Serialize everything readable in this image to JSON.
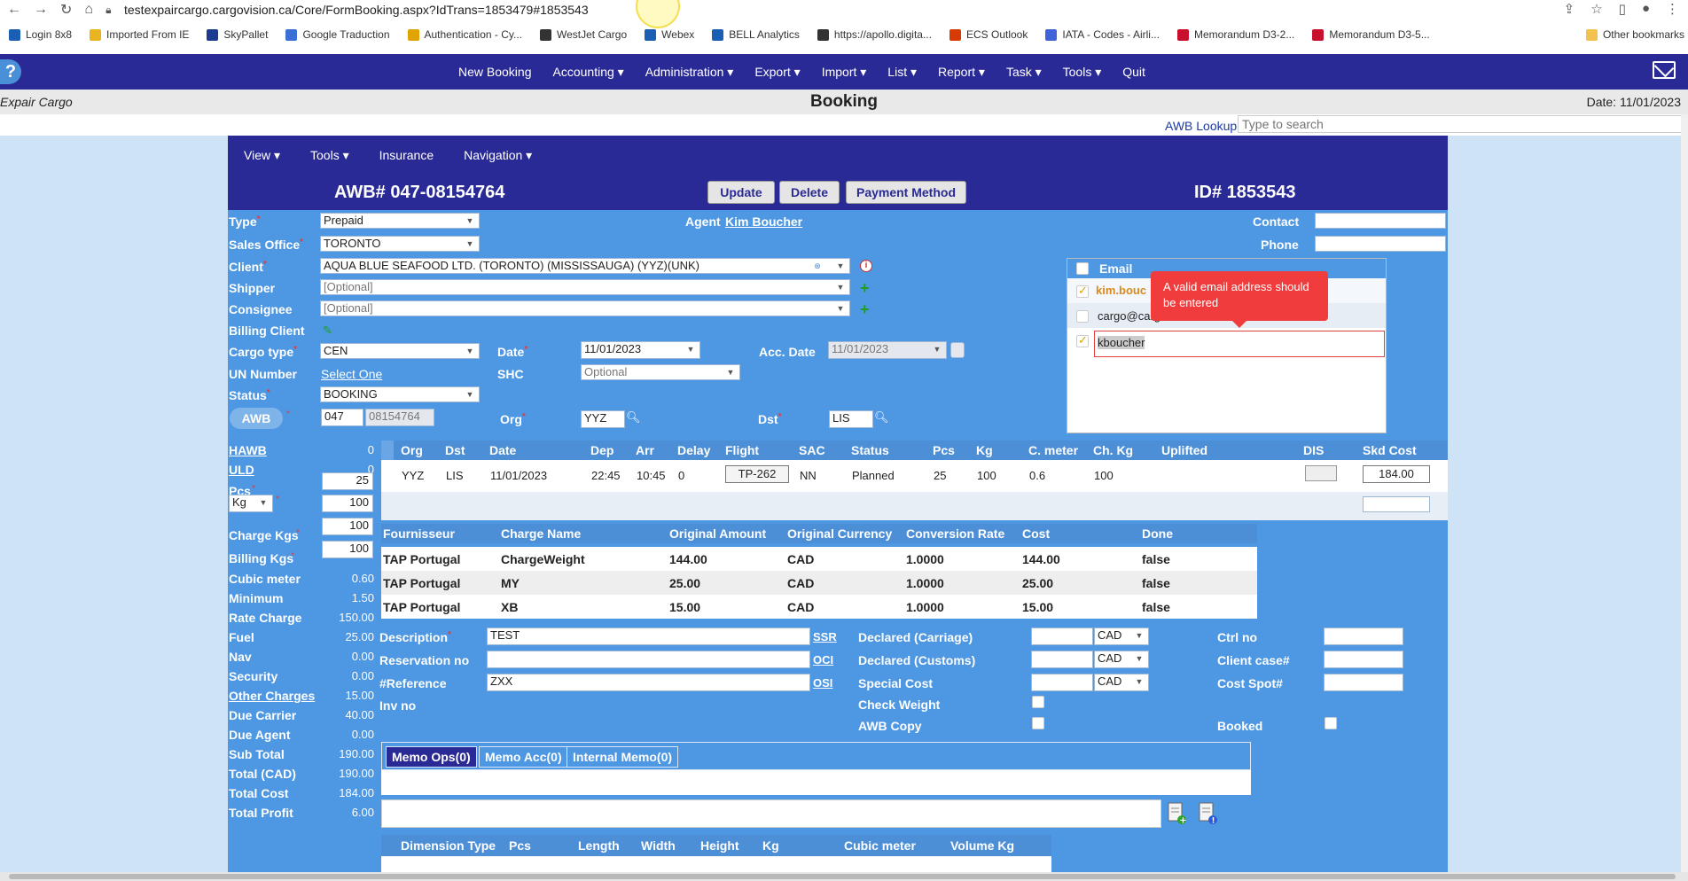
{
  "browser": {
    "url": "testexpaircargo.cargovision.ca/Core/FormBooking.aspx?IdTrans=1853479#1853543",
    "bookmarks": [
      {
        "label": "Login 8x8",
        "color": "#1a5fb4"
      },
      {
        "label": "Imported From IE",
        "color": "#e8b420"
      },
      {
        "label": "SkyPallet",
        "color": "#1c3d8f"
      },
      {
        "label": "Google Traduction",
        "color": "#3a6fd8"
      },
      {
        "label": "Authentication - Cy...",
        "color": "#e0a300"
      },
      {
        "label": "WestJet Cargo",
        "color": "#333333"
      },
      {
        "label": "Webex",
        "color": "#1a5fb4"
      },
      {
        "label": "BELL Analytics",
        "color": "#1a5fb4"
      },
      {
        "label": "https://apollo.digita...",
        "color": "#333333"
      },
      {
        "label": "ECS Outlook",
        "color": "#d83b01"
      },
      {
        "label": "IATA - Codes - Airli...",
        "color": "#4063d8"
      },
      {
        "label": "Memorandum D3-2...",
        "color": "#c8102e"
      },
      {
        "label": "Memorandum D3-5...",
        "color": "#c8102e"
      }
    ],
    "other_bookmarks": "Other bookmarks"
  },
  "nav": {
    "help": "?",
    "items": [
      "New Booking",
      "Accounting ▾",
      "Administration ▾",
      "Export ▾",
      "Import ▾",
      "List ▾",
      "Report ▾",
      "Task ▾",
      "Tools ▾",
      "Quit"
    ]
  },
  "header": {
    "company": "Expair Cargo",
    "title": "Booking",
    "date": "Date: 11/01/2023",
    "awb_lookup": "AWB Lookup",
    "search_placeholder": "Type to search"
  },
  "toolbar": {
    "items": [
      "View ▾",
      "Tools ▾",
      "Insurance",
      "Navigation ▾"
    ]
  },
  "titlebar": {
    "awb": "AWB# 047-08154764",
    "id": "ID# 1853543",
    "update": "Update",
    "delete": "Delete",
    "payment": "Payment Method"
  },
  "form": {
    "type_label": "Type",
    "type_value": "Prepaid",
    "sales_office_label": "Sales Office",
    "sales_office_value": "TORONTO",
    "client_label": "Client",
    "client_value": "AQUA BLUE SEAFOOD LTD. (TORONTO) (MISSISSAUGA) (YYZ)(UNK)",
    "shipper_label": "Shipper",
    "shipper_value": "[Optional]",
    "consignee_label": "Consignee",
    "consignee_value": "[Optional]",
    "billing_client_label": "Billing Client",
    "cargo_type_label": "Cargo type",
    "cargo_type_value": "CEN",
    "un_label": "UN Number",
    "un_value": "Select One",
    "status_label": "Status",
    "status_value": "BOOKING",
    "awb_btn": "AWB",
    "awb_prefix": "047",
    "awb_number": "08154764",
    "agent_label": "Agent",
    "agent_value": "Kim Boucher",
    "date_label": "Date",
    "date_value": "11/01/2023",
    "shc_label": "SHC",
    "shc_value": "Optional",
    "acc_date_label": "Acc. Date",
    "acc_date_value": "11/01/2023",
    "org_label": "Org",
    "org_value": "YYZ",
    "dst_label": "Dst",
    "dst_value": "LIS",
    "contact_label": "Contact",
    "phone_label": "Phone"
  },
  "email": {
    "header": "Email",
    "rows": [
      "kim.bouc",
      "cargo@cargo.com",
      "kboucher"
    ],
    "tooltip": "A valid email address should be entered"
  },
  "summary": [
    {
      "label": "HAWB",
      "value": "0",
      "link": true
    },
    {
      "label": "ULD",
      "value": "0",
      "link": true
    },
    {
      "label": "Pcs",
      "value": "25"
    },
    {
      "label": "Kg",
      "value": "100"
    },
    {
      "label": "Charge Kgs",
      "value": "100"
    },
    {
      "label": "Billing Kgs",
      "value": "100"
    },
    {
      "label": "Cubic meter",
      "value": "0.60"
    },
    {
      "label": "Minimum",
      "value": "1.50"
    },
    {
      "label": "Rate Charge",
      "value": "150.00"
    },
    {
      "label": "Fuel",
      "value": "25.00"
    },
    {
      "label": "Nav",
      "value": "0.00"
    },
    {
      "label": "Security",
      "value": "0.00"
    },
    {
      "label": "Other Charges",
      "value": "15.00",
      "link": true
    },
    {
      "label": "Due Carrier",
      "value": "40.00"
    },
    {
      "label": "Due Agent",
      "value": "0.00"
    },
    {
      "label": "Sub Total",
      "value": "190.00"
    },
    {
      "label": "Total (CAD)",
      "value": "190.00"
    },
    {
      "label": "Total Cost",
      "value": "184.00"
    },
    {
      "label": "Total Profit",
      "value": "6.00"
    }
  ],
  "flight_grid": {
    "headers": [
      "Org",
      "Dst",
      "Date",
      "Dep",
      "Arr",
      "Delay",
      "Flight",
      "SAC",
      "Status",
      "Pcs",
      "Kg",
      "C. meter",
      "Ch. Kg",
      "Uplifted",
      "DIS",
      "Skd Cost"
    ],
    "row": [
      "YYZ",
      "LIS",
      "11/01/2023",
      "22:45",
      "10:45",
      "0",
      "TP-262",
      "NN",
      "Planned",
      "25",
      "100",
      "0.6",
      "100",
      "",
      "",
      "184.00"
    ]
  },
  "charges": {
    "headers": [
      "Fournisseur",
      "Charge Name",
      "Original Amount",
      "Original Currency",
      "Conversion Rate",
      "Cost",
      "Done"
    ],
    "rows": [
      [
        "TAP Portugal",
        "ChargeWeight",
        "144.00",
        "CAD",
        "1.0000",
        "144.00",
        "false"
      ],
      [
        "TAP Portugal",
        "MY",
        "25.00",
        "CAD",
        "1.0000",
        "25.00",
        "false"
      ],
      [
        "TAP Portugal",
        "XB",
        "15.00",
        "CAD",
        "1.0000",
        "15.00",
        "false"
      ]
    ]
  },
  "details": {
    "description_label": "Description",
    "description_value": "TEST",
    "reservation_label": "Reservation no",
    "reference_label": "#Reference",
    "reference_value": "ZXX",
    "inv_label": "Inv no",
    "ssr": "SSR",
    "oci": "OCI",
    "osi": "OSI",
    "declared_carriage": "Declared (Carriage)",
    "declared_customs": "Declared (Customs)",
    "special_cost": "Special Cost",
    "check_weight": "Check Weight",
    "awb_copy": "AWB Copy",
    "currency": "CAD",
    "ctrl_no": "Ctrl no",
    "client_case": "Client case#",
    "cost_spot": "Cost Spot#",
    "booked": "Booked"
  },
  "memo_tabs": [
    "Memo Ops(0)",
    "Memo Acc(0)",
    "Internal Memo(0)"
  ],
  "dimension_headers": [
    "Dimension Type",
    "Pcs",
    "Length",
    "Width",
    "Height",
    "Kg",
    "Cubic meter",
    "Volume Kg"
  ]
}
